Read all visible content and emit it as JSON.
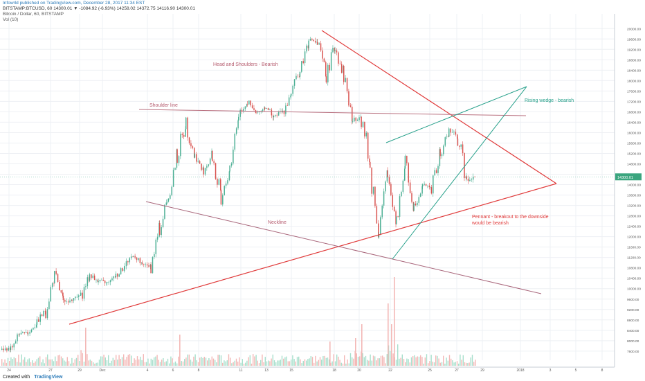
{
  "header": {
    "line1": "Infowrld published on TradingView.com, December 28, 2017 11:34 EST",
    "line2": "BITSTAMP:BTCUSD, 60  14300.01 ▼ -1084.92 (-6.93%)  14258.02  14372.75  14116.90  14300.01",
    "line3": "Bitcoin / Dollar, 60, BITSTAMP",
    "line4": "Vol (10)"
  },
  "footer": {
    "created_with": "Created with",
    "brand": "TradingView"
  },
  "chart_data": {
    "type": "line",
    "title": "BITSTAMP:BTCUSD, 60",
    "series": [
      {
        "values": [
          7650,
          7700,
          8250,
          8300,
          8700,
          9200,
          10500,
          9500,
          9600,
          9700,
          10500,
          10300,
          10200,
          10500,
          10900,
          11300,
          10900,
          10900,
          12300,
          13600,
          15100,
          16400,
          15100,
          14500,
          15200,
          13200,
          14700,
          16700,
          17200,
          16700,
          17000,
          16600,
          16800,
          17500,
          18400,
          19600,
          19400,
          18200,
          19300,
          18300,
          16400,
          16700,
          14600,
          12300,
          14300,
          12700,
          14800,
          13200,
          14000,
          13900,
          15100,
          16100,
          15800,
          14200,
          14300
        ]
      }
    ],
    "ylim": [
      7250,
      20300
    ],
    "y_ticks": [
      "20000.00",
      "19600.00",
      "19200.00",
      "18800.00",
      "18400.00",
      "18000.00",
      "17600.00",
      "17200.00",
      "16800.00",
      "16400.00",
      "16000.00",
      "15600.00",
      "15200.00",
      "14800.00",
      "14400.00",
      "14000.00",
      "13600.00",
      "13200.00",
      "12800.00",
      "12400.00",
      "12000.00",
      "11600.00",
      "11200.00",
      "10800.00",
      "10400.00",
      "10000.00",
      "9600.00",
      "9200.00",
      "8800.00",
      "8400.00",
      "8000.00",
      "7600.00"
    ],
    "x_ticks": [
      "24",
      "27",
      "29",
      "Dec",
      "4",
      "6",
      "8",
      "11",
      "13",
      "15",
      "18",
      "20",
      "22",
      "25",
      "27",
      "29",
      "2018",
      "3",
      "5",
      "8"
    ],
    "price_label": "14300.01",
    "annotations": [
      "Head and Shoulders - Bearish",
      "Shoulder line",
      "Neckline",
      "Rising wedge - bearish",
      "Pennant - breakout to the downside",
      "would be bearish"
    ],
    "grid": true
  },
  "colors": {
    "up": "#4caf94",
    "down": "#d9534f",
    "pennant_line": "#e03a3a",
    "shoulder_line": "#b06a7a",
    "wedge_line": "#26a08a",
    "grid": "#eef0f4"
  }
}
